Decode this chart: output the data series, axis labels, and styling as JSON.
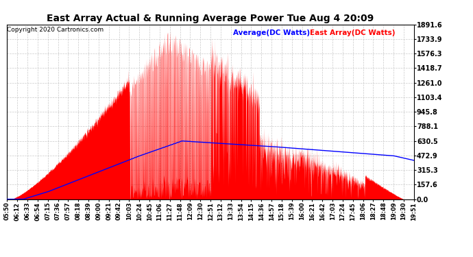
{
  "title": "East Array Actual & Running Average Power Tue Aug 4 20:09",
  "copyright": "Copyright 2020 Cartronics.com",
  "legend_average": "Average(DC Watts)",
  "legend_east": "East Array(DC Watts)",
  "ylabel_values": [
    0.0,
    157.6,
    315.3,
    472.9,
    630.5,
    788.1,
    945.8,
    1103.4,
    1261.0,
    1418.7,
    1576.3,
    1733.9,
    1891.6
  ],
  "ymax": 1891.6,
  "ymin": 0.0,
  "background_color": "#ffffff",
  "fill_color": "#ff0000",
  "line_color": "#0000ff",
  "grid_color": "#bbbbbb",
  "title_color": "#000000",
  "copyright_color": "#000000",
  "legend_avg_color": "#0000ff",
  "legend_east_color": "#ff0000",
  "x_tick_labels": [
    "05:50",
    "06:12",
    "06:33",
    "06:54",
    "07:15",
    "07:36",
    "07:57",
    "08:18",
    "08:39",
    "09:00",
    "09:21",
    "09:42",
    "10:03",
    "10:24",
    "10:45",
    "11:06",
    "11:27",
    "11:48",
    "12:09",
    "12:30",
    "12:51",
    "13:12",
    "13:33",
    "13:54",
    "14:15",
    "14:36",
    "14:57",
    "15:18",
    "15:39",
    "16:00",
    "16:21",
    "16:42",
    "17:03",
    "17:24",
    "17:45",
    "18:06",
    "18:27",
    "18:48",
    "19:09",
    "19:30",
    "19:51"
  ],
  "n_points": 2460
}
